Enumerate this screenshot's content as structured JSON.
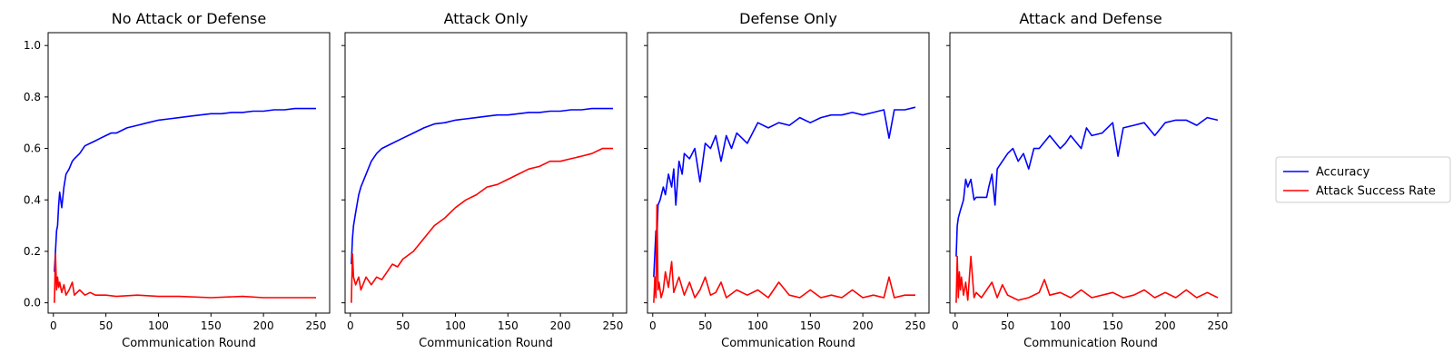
{
  "colors": {
    "accuracy": "#0000ff",
    "attack_success_rate": "#ff0000",
    "axes": "#000000"
  },
  "legend": {
    "placement": "right, outside",
    "items": [
      {
        "label": "Accuracy",
        "color": "#0000ff"
      },
      {
        "label": "Attack Success Rate",
        "color": "#ff0000"
      }
    ]
  },
  "chart_data": [
    {
      "type": "line",
      "title": "No Attack or Defense",
      "xlabel": "Communication Round",
      "ylabel": "",
      "xlim": [
        -5,
        263
      ],
      "ylim": [
        -0.04,
        1.05
      ],
      "xticks": [
        0,
        50,
        100,
        150,
        200,
        250
      ],
      "yticks": [
        0.0,
        0.2,
        0.4,
        0.6,
        0.8,
        1.0
      ],
      "grid": false,
      "series": [
        {
          "name": "Accuracy",
          "color": "#0000ff",
          "x": [
            1,
            2,
            3,
            4,
            5,
            6,
            8,
            10,
            12,
            15,
            18,
            20,
            25,
            30,
            35,
            40,
            45,
            50,
            55,
            60,
            70,
            80,
            90,
            100,
            110,
            120,
            130,
            140,
            150,
            160,
            170,
            180,
            190,
            200,
            210,
            220,
            230,
            240,
            250
          ],
          "y": [
            0.12,
            0.2,
            0.28,
            0.3,
            0.38,
            0.43,
            0.37,
            0.45,
            0.5,
            0.52,
            0.55,
            0.56,
            0.58,
            0.61,
            0.62,
            0.63,
            0.64,
            0.65,
            0.66,
            0.66,
            0.68,
            0.69,
            0.7,
            0.71,
            0.715,
            0.72,
            0.725,
            0.73,
            0.735,
            0.735,
            0.74,
            0.74,
            0.745,
            0.745,
            0.75,
            0.75,
            0.755,
            0.755,
            0.755
          ]
        },
        {
          "name": "Attack Success Rate",
          "color": "#ff0000",
          "x": [
            1,
            2,
            3,
            4,
            5,
            6,
            8,
            10,
            12,
            15,
            18,
            20,
            25,
            30,
            35,
            40,
            50,
            60,
            80,
            100,
            120,
            150,
            180,
            200,
            220,
            250
          ],
          "y": [
            0.0,
            0.19,
            0.05,
            0.1,
            0.06,
            0.08,
            0.04,
            0.07,
            0.03,
            0.05,
            0.08,
            0.03,
            0.05,
            0.03,
            0.04,
            0.03,
            0.03,
            0.025,
            0.03,
            0.025,
            0.025,
            0.02,
            0.025,
            0.02,
            0.02,
            0.02
          ]
        }
      ]
    },
    {
      "type": "line",
      "title": "Attack Only",
      "xlabel": "Communication Round",
      "ylabel": "",
      "xlim": [
        -5,
        263
      ],
      "ylim": [
        -0.04,
        1.05
      ],
      "xticks": [
        0,
        50,
        100,
        150,
        200,
        250
      ],
      "yticks": [
        0.0,
        0.2,
        0.4,
        0.6,
        0.8,
        1.0
      ],
      "grid": false,
      "series": [
        {
          "name": "Accuracy",
          "color": "#0000ff",
          "x": [
            1,
            2,
            3,
            5,
            8,
            10,
            15,
            20,
            25,
            30,
            40,
            50,
            60,
            70,
            80,
            90,
            100,
            110,
            120,
            130,
            140,
            150,
            160,
            170,
            180,
            190,
            200,
            210,
            220,
            230,
            240,
            250
          ],
          "y": [
            0.15,
            0.25,
            0.3,
            0.35,
            0.42,
            0.45,
            0.5,
            0.55,
            0.58,
            0.6,
            0.62,
            0.64,
            0.66,
            0.68,
            0.695,
            0.7,
            0.71,
            0.715,
            0.72,
            0.725,
            0.73,
            0.73,
            0.735,
            0.74,
            0.74,
            0.745,
            0.745,
            0.75,
            0.75,
            0.755,
            0.755,
            0.755
          ]
        },
        {
          "name": "Attack Success Rate",
          "color": "#ff0000",
          "x": [
            1,
            2,
            3,
            5,
            8,
            10,
            15,
            20,
            25,
            30,
            35,
            40,
            45,
            50,
            60,
            70,
            80,
            90,
            100,
            110,
            120,
            130,
            140,
            150,
            160,
            170,
            180,
            190,
            200,
            210,
            220,
            230,
            240,
            250
          ],
          "y": [
            0.0,
            0.19,
            0.1,
            0.07,
            0.1,
            0.05,
            0.1,
            0.07,
            0.1,
            0.09,
            0.12,
            0.15,
            0.14,
            0.17,
            0.2,
            0.25,
            0.3,
            0.33,
            0.37,
            0.4,
            0.42,
            0.45,
            0.46,
            0.48,
            0.5,
            0.52,
            0.53,
            0.55,
            0.55,
            0.56,
            0.57,
            0.58,
            0.6,
            0.6
          ]
        }
      ]
    },
    {
      "type": "line",
      "title": "Defense Only",
      "xlabel": "Communication Round",
      "ylabel": "",
      "xlim": [
        -5,
        263
      ],
      "ylim": [
        -0.04,
        1.05
      ],
      "xticks": [
        0,
        50,
        100,
        150,
        200,
        250
      ],
      "yticks": [
        0.0,
        0.2,
        0.4,
        0.6,
        0.8,
        1.0
      ],
      "grid": false,
      "series": [
        {
          "name": "Accuracy",
          "color": "#0000ff",
          "x": [
            1,
            3,
            4,
            5,
            7,
            10,
            12,
            15,
            18,
            20,
            22,
            25,
            28,
            30,
            35,
            40,
            45,
            50,
            55,
            60,
            65,
            70,
            75,
            80,
            90,
            100,
            110,
            120,
            130,
            140,
            150,
            160,
            170,
            180,
            190,
            200,
            210,
            220,
            225,
            230,
            240,
            250
          ],
          "y": [
            0.1,
            0.28,
            0.25,
            0.38,
            0.4,
            0.45,
            0.42,
            0.5,
            0.45,
            0.52,
            0.38,
            0.55,
            0.5,
            0.58,
            0.56,
            0.6,
            0.47,
            0.62,
            0.6,
            0.65,
            0.55,
            0.65,
            0.6,
            0.66,
            0.62,
            0.7,
            0.68,
            0.7,
            0.69,
            0.72,
            0.7,
            0.72,
            0.73,
            0.73,
            0.74,
            0.73,
            0.74,
            0.75,
            0.64,
            0.75,
            0.75,
            0.76
          ]
        },
        {
          "name": "Attack Success Rate",
          "color": "#ff0000",
          "x": [
            1,
            2,
            3,
            4,
            5,
            6,
            8,
            10,
            12,
            15,
            18,
            20,
            25,
            30,
            35,
            40,
            45,
            50,
            55,
            60,
            65,
            70,
            80,
            90,
            100,
            110,
            120,
            130,
            140,
            150,
            160,
            170,
            180,
            190,
            200,
            210,
            220,
            225,
            230,
            240,
            250
          ],
          "y": [
            0.0,
            0.1,
            0.02,
            0.38,
            0.05,
            0.08,
            0.02,
            0.05,
            0.12,
            0.06,
            0.16,
            0.04,
            0.1,
            0.03,
            0.08,
            0.02,
            0.05,
            0.1,
            0.03,
            0.04,
            0.08,
            0.02,
            0.05,
            0.03,
            0.05,
            0.02,
            0.08,
            0.03,
            0.02,
            0.05,
            0.02,
            0.03,
            0.02,
            0.05,
            0.02,
            0.03,
            0.02,
            0.1,
            0.02,
            0.03,
            0.03
          ]
        }
      ]
    },
    {
      "type": "line",
      "title": "Attack and Defense",
      "xlabel": "Communication Round",
      "ylabel": "",
      "xlim": [
        -5,
        263
      ],
      "ylim": [
        -0.04,
        1.05
      ],
      "xticks": [
        0,
        50,
        100,
        150,
        200,
        250
      ],
      "yticks": [
        0.0,
        0.2,
        0.4,
        0.6,
        0.8,
        1.0
      ],
      "grid": false,
      "series": [
        {
          "name": "Accuracy",
          "color": "#0000ff",
          "x": [
            1,
            2,
            3,
            5,
            8,
            10,
            12,
            15,
            18,
            20,
            25,
            30,
            32,
            35,
            38,
            40,
            45,
            50,
            55,
            60,
            65,
            70,
            75,
            80,
            90,
            100,
            105,
            110,
            120,
            125,
            130,
            140,
            150,
            155,
            160,
            170,
            180,
            190,
            200,
            210,
            220,
            230,
            240,
            250
          ],
          "y": [
            0.18,
            0.3,
            0.33,
            0.36,
            0.4,
            0.48,
            0.45,
            0.48,
            0.4,
            0.41,
            0.41,
            0.41,
            0.45,
            0.5,
            0.38,
            0.52,
            0.55,
            0.58,
            0.6,
            0.55,
            0.58,
            0.52,
            0.6,
            0.6,
            0.65,
            0.6,
            0.62,
            0.65,
            0.6,
            0.68,
            0.65,
            0.66,
            0.7,
            0.57,
            0.68,
            0.69,
            0.7,
            0.65,
            0.7,
            0.71,
            0.71,
            0.69,
            0.72,
            0.71
          ]
        },
        {
          "name": "Attack Success Rate",
          "color": "#ff0000",
          "x": [
            1,
            2,
            3,
            4,
            5,
            6,
            8,
            10,
            12,
            15,
            18,
            20,
            25,
            30,
            35,
            40,
            45,
            50,
            55,
            60,
            70,
            80,
            85,
            90,
            100,
            110,
            120,
            130,
            140,
            150,
            160,
            170,
            180,
            190,
            200,
            210,
            220,
            230,
            240,
            250
          ],
          "y": [
            0.0,
            0.18,
            0.02,
            0.12,
            0.05,
            0.1,
            0.03,
            0.08,
            0.01,
            0.18,
            0.02,
            0.04,
            0.02,
            0.05,
            0.08,
            0.02,
            0.07,
            0.03,
            0.02,
            0.01,
            0.02,
            0.04,
            0.09,
            0.03,
            0.04,
            0.02,
            0.05,
            0.02,
            0.03,
            0.04,
            0.02,
            0.03,
            0.05,
            0.02,
            0.04,
            0.02,
            0.05,
            0.02,
            0.04,
            0.02
          ]
        }
      ]
    }
  ]
}
